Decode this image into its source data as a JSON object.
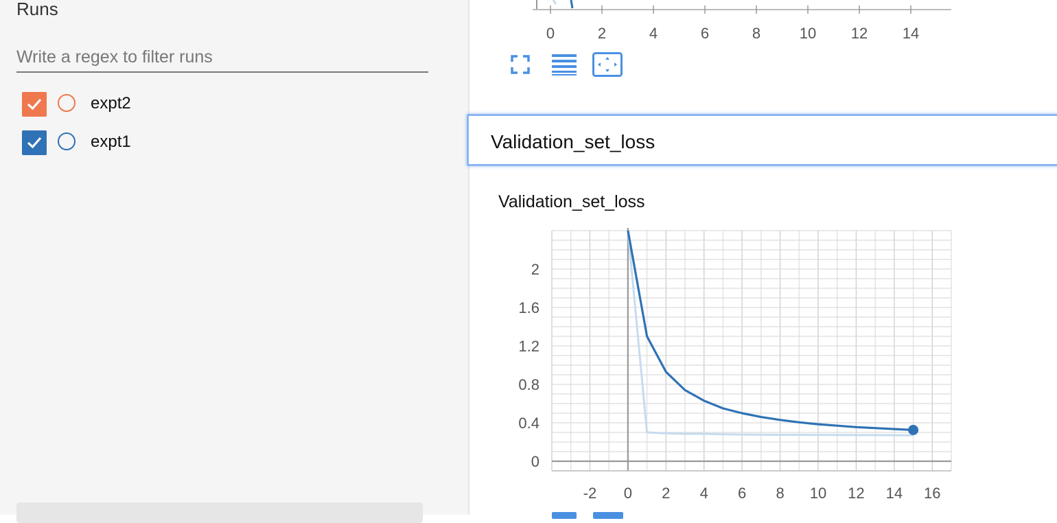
{
  "sidebar": {
    "title": "Runs",
    "filter_placeholder": "Write a regex to filter runs",
    "runs": [
      {
        "name": "expt2",
        "color": "#f0784e",
        "checked": true
      },
      {
        "name": "expt1",
        "color": "#2f72b5",
        "checked": true
      }
    ]
  },
  "top_chart": {
    "x_ticks": [
      "0",
      "2",
      "4",
      "6",
      "8",
      "10",
      "12",
      "14"
    ],
    "toolbar": [
      "fullscreen-icon",
      "list-icon",
      "fit-domain-icon"
    ]
  },
  "section": {
    "title": "Validation_set_loss"
  },
  "card": {
    "title": "Validation_set_loss"
  },
  "chart_data": {
    "type": "line",
    "title": "Validation_set_loss",
    "xlim": [
      -4,
      17
    ],
    "ylim": [
      -0.1,
      2.4
    ],
    "x_ticks": [
      -2,
      0,
      2,
      4,
      6,
      8,
      10,
      12,
      14,
      16
    ],
    "y_ticks": [
      0,
      0.4,
      0.8,
      1.2,
      1.6,
      2
    ],
    "x_tick_labels": [
      "-2",
      "0",
      "2",
      "4",
      "6",
      "8",
      "10",
      "12",
      "14",
      "16"
    ],
    "y_tick_labels": [
      "0",
      "0.4",
      "0.8",
      "1.2",
      "1.6",
      "2"
    ],
    "grid": true,
    "series": [
      {
        "color": "#2f72b5",
        "x": [
          0,
          1,
          2,
          3,
          4,
          5,
          6,
          7,
          8,
          9,
          10,
          11,
          12,
          13,
          14,
          15
        ],
        "y": [
          2.4,
          1.3,
          0.93,
          0.74,
          0.63,
          0.55,
          0.5,
          0.46,
          0.43,
          0.405,
          0.385,
          0.37,
          0.355,
          0.345,
          0.335,
          0.325
        ]
      },
      {
        "color": "#c6dbef",
        "x": [
          0,
          1,
          2,
          3,
          4,
          5,
          6,
          7,
          8,
          9,
          10,
          11,
          12,
          13,
          14,
          15
        ],
        "y": [
          2.4,
          0.3,
          0.29,
          0.285,
          0.285,
          0.28,
          0.278,
          0.276,
          0.275,
          0.275,
          0.274,
          0.273,
          0.272,
          0.272,
          0.271,
          0.27
        ]
      }
    ]
  }
}
